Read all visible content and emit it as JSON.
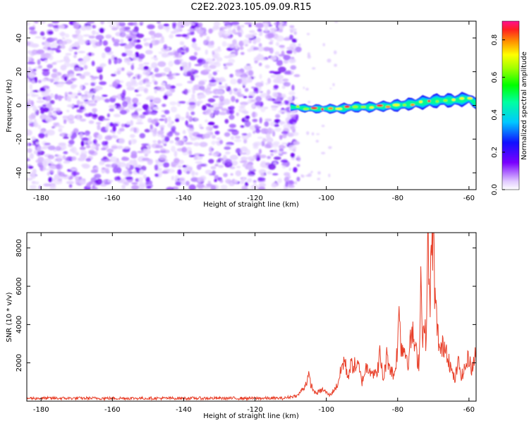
{
  "figure_title": "C2E2.2023.105.09.09.R15",
  "chart_data": [
    {
      "type": "heatmap",
      "xlabel": "Height of straight line (km)",
      "ylabel": "Frequency (Hz)",
      "xlim": [
        -184,
        -58
      ],
      "ylim": [
        -50,
        50
      ],
      "x_ticks": [
        -180,
        -160,
        -140,
        -120,
        -100,
        -80,
        -60
      ],
      "y_ticks": [
        -40,
        -20,
        0,
        20,
        40
      ],
      "colorbar": {
        "label": "Normalized spectral amplitude",
        "range": [
          0,
          0.9
        ],
        "ticks": [
          0.0,
          0.2,
          0.4,
          0.6,
          0.8
        ]
      },
      "noise_region_x": [
        -184,
        -109
      ],
      "signal_band": {
        "x": [
          -110,
          -104,
          -100,
          -96,
          -92,
          -88,
          -84,
          -80,
          -76,
          -72,
          -68,
          -64,
          -60,
          -58
        ],
        "center_hz": [
          -1,
          -2,
          -2,
          -2,
          -1,
          -1,
          -0.5,
          0,
          1,
          2,
          3,
          3,
          4,
          1
        ],
        "halfwidth_hz": [
          2,
          2.5,
          2.5,
          3,
          3,
          3,
          3,
          3.5,
          3.5,
          4,
          4,
          4,
          4,
          3
        ]
      }
    },
    {
      "type": "line",
      "xlabel": "Height of straight line (km)",
      "ylabel": "SNR (10 * v/v)",
      "xlim": [
        -184,
        -58
      ],
      "ylim": [
        0,
        8800
      ],
      "x_ticks": [
        -180,
        -160,
        -140,
        -120,
        -100,
        -80,
        -60
      ],
      "y_ticks": [
        2000,
        4000,
        6000,
        8000
      ],
      "series": [
        {
          "color": "#e8402a",
          "x": [
            -184,
            -170,
            -150,
            -130,
            -112,
            -108,
            -106,
            -105,
            -104,
            -103,
            -101,
            -99,
            -97,
            -96,
            -95,
            -94,
            -93,
            -91,
            -90,
            -89,
            -88,
            -86,
            -85,
            -84,
            -83,
            -82,
            -81,
            -80,
            -79.5,
            -79,
            -78,
            -77,
            -76,
            -75,
            -74,
            -73.5,
            -73,
            -72,
            -71.5,
            -71,
            -70.5,
            -70,
            -69.5,
            -69,
            -68,
            -67,
            -66,
            -65,
            -64,
            -63,
            -62,
            -61,
            -60,
            -59,
            -58
          ],
          "y": [
            150,
            150,
            150,
            150,
            150,
            300,
            800,
            1300,
            700,
            400,
            600,
            300,
            800,
            1500,
            2200,
            1300,
            1900,
            1800,
            1000,
            1700,
            1800,
            1300,
            2400,
            1100,
            2400,
            1700,
            1300,
            2800,
            5100,
            2800,
            2700,
            2100,
            3700,
            2600,
            2000,
            6400,
            3700,
            3400,
            8200,
            5200,
            7400,
            8800,
            5300,
            3900,
            2500,
            3000,
            2600,
            1600,
            1100,
            2000,
            1300,
            1800,
            2300,
            1600,
            2900
          ]
        }
      ]
    }
  ]
}
